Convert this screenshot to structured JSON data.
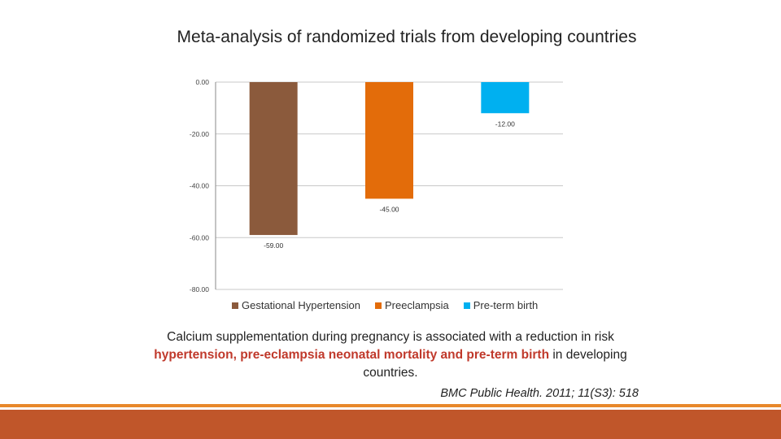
{
  "chart_data": {
    "type": "bar",
    "title": "Meta-analysis of randomized trials from developing countries",
    "categories": [
      "Gestational Hypertension",
      "Preeclampsia",
      "Pre-term birth"
    ],
    "values": [
      -59.0,
      -45.0,
      -12.0
    ],
    "value_labels": [
      "-59.00",
      "-45.00",
      "-12.00"
    ],
    "colors": [
      "#8b5a3c",
      "#e36c0a",
      "#00b0f0"
    ],
    "ylim": [
      -80,
      0
    ],
    "yticks": [
      0,
      -20,
      -40,
      -60,
      -80
    ],
    "ytick_labels": [
      "0.00",
      "-20.00",
      "-40.00",
      "-60.00",
      "-80.00"
    ],
    "legend": [
      "Gestational Hypertension",
      "Preeclampsia",
      "Pre-term birth"
    ],
    "legend_position": "bottom",
    "xlabel": "",
    "ylabel": ""
  },
  "caption": {
    "line1": "Calcium supplementation during pregnancy is associated with a reduction in risk",
    "red": "hypertension, pre-eclampsia neonatal mortality and pre-term birth",
    "tail": " in developing countries."
  },
  "citation": "BMC Public Health. 2011; 11(S3): 518"
}
